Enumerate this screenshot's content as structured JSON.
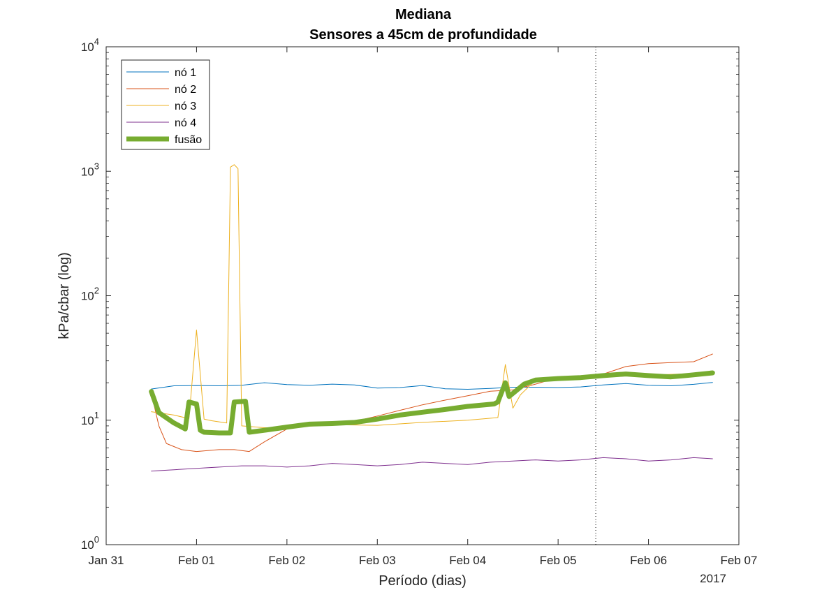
{
  "chart_data": {
    "type": "line",
    "title": [
      "Mediana",
      "Sensores a 45cm de profundidade"
    ],
    "xlabel": "Período (dias)",
    "ylabel": "kPa/cbar (log)",
    "year_label": "2017",
    "x_tick_labels": [
      "Jan 31",
      "Feb 01",
      "Feb 02",
      "Feb 03",
      "Feb 04",
      "Feb 05",
      "Feb 06",
      "Feb 07"
    ],
    "x_ticks": [
      "2017-01-31",
      "2017-02-01",
      "2017-02-02",
      "2017-02-03",
      "2017-02-04",
      "2017-02-05",
      "2017-02-06",
      "2017-02-07"
    ],
    "xlim": [
      "2017-01-31 00:00",
      "2017-02-07 00:00"
    ],
    "y_scale": "log",
    "ylim": [
      1,
      10000
    ],
    "y_ticks": [
      1,
      10,
      100,
      1000,
      10000
    ],
    "y_tick_labels": [
      {
        "base": "10",
        "exp": "0"
      },
      {
        "base": "10",
        "exp": "1"
      },
      {
        "base": "10",
        "exp": "2"
      },
      {
        "base": "10",
        "exp": "3"
      },
      {
        "base": "10",
        "exp": "4"
      }
    ],
    "vline": {
      "x": "2017-02-05 10:00",
      "style": "dotted"
    },
    "legend_position": "top-left",
    "grid": false,
    "series": [
      {
        "name": "nó 1",
        "color": "#0072BD",
        "width": 1,
        "x": [
          "2017-01-31 12:00",
          "2017-01-31 18:00",
          "2017-02-01 00:00",
          "2017-02-01 06:00",
          "2017-02-01 12:00",
          "2017-02-01 18:00",
          "2017-02-02 00:00",
          "2017-02-02 06:00",
          "2017-02-02 12:00",
          "2017-02-02 18:00",
          "2017-02-03 00:00",
          "2017-02-03 06:00",
          "2017-02-03 12:00",
          "2017-02-03 18:00",
          "2017-02-04 00:00",
          "2017-02-04 06:00",
          "2017-02-04 12:00",
          "2017-02-04 18:00",
          "2017-02-05 00:00",
          "2017-02-05 06:00",
          "2017-02-05 12:00",
          "2017-02-05 18:00",
          "2017-02-06 00:00",
          "2017-02-06 06:00",
          "2017-02-06 12:00",
          "2017-02-06 17:00"
        ],
        "values": [
          17.8,
          18.9,
          19.0,
          18.9,
          19.1,
          20.0,
          19.3,
          19.1,
          19.5,
          19.2,
          18.1,
          18.3,
          19.0,
          17.9,
          17.7,
          18.0,
          18.4,
          18.4,
          18.3,
          18.5,
          19.2,
          19.7,
          19.1,
          18.9,
          19.4,
          20.1
        ]
      },
      {
        "name": "nó 2",
        "color": "#D95319",
        "width": 1,
        "x": [
          "2017-01-31 12:00",
          "2017-01-31 14:00",
          "2017-01-31 16:00",
          "2017-01-31 20:00",
          "2017-02-01 00:00",
          "2017-02-01 06:00",
          "2017-02-01 10:00",
          "2017-02-01 14:00",
          "2017-02-01 18:00",
          "2017-02-02 00:00",
          "2017-02-02 06:00",
          "2017-02-02 12:00",
          "2017-02-02 18:00",
          "2017-02-03 00:00",
          "2017-02-03 06:00",
          "2017-02-03 12:00",
          "2017-02-03 18:00",
          "2017-02-04 00:00",
          "2017-02-04 06:00",
          "2017-02-04 12:00",
          "2017-02-04 18:00",
          "2017-02-05 00:00",
          "2017-02-05 06:00",
          "2017-02-05 12:00",
          "2017-02-05 18:00",
          "2017-02-06 00:00",
          "2017-02-06 06:00",
          "2017-02-06 12:00",
          "2017-02-06 17:00"
        ],
        "values": [
          16.5,
          9.0,
          6.5,
          5.8,
          5.6,
          5.8,
          5.8,
          5.6,
          6.7,
          8.5,
          9.4,
          9.3,
          9.8,
          10.8,
          12.0,
          13.3,
          14.5,
          15.7,
          17.1,
          17.5,
          19.5,
          22.0,
          22.5,
          23.5,
          27.0,
          28.5,
          29.0,
          29.5,
          34.0
        ]
      },
      {
        "name": "nó 3",
        "color": "#EDB120",
        "width": 1,
        "x": [
          "2017-01-31 12:00",
          "2017-01-31 18:00",
          "2017-01-31 22:00",
          "2017-02-01 00:00",
          "2017-02-01 02:00",
          "2017-02-01 04:00",
          "2017-02-01 06:00",
          "2017-02-01 08:00",
          "2017-02-01 09:00",
          "2017-02-01 10:00",
          "2017-02-01 11:00",
          "2017-02-01 12:00",
          "2017-02-01 18:00",
          "2017-02-02 00:00",
          "2017-02-02 12:00",
          "2017-02-03 00:00",
          "2017-02-03 12:00",
          "2017-02-04 00:00",
          "2017-02-04 08:00",
          "2017-02-04 10:00",
          "2017-02-04 12:00",
          "2017-02-04 14:00",
          "2017-02-04 18:00",
          "2017-02-05 00:00",
          "2017-02-05 12:00",
          "2017-02-06 00:00",
          "2017-02-06 17:00"
        ],
        "values": [
          11.7,
          11.0,
          10.3,
          53.0,
          10.2,
          9.9,
          9.7,
          9.5,
          1080,
          1130,
          1050,
          9.0,
          8.7,
          8.7,
          9.2,
          9.1,
          9.6,
          10.0,
          10.5,
          28.0,
          12.5,
          16.0,
          21.0,
          22.0,
          22.5,
          23.0,
          24.0
        ]
      },
      {
        "name": "nó 4",
        "color": "#7E2F8E",
        "width": 1,
        "x": [
          "2017-01-31 12:00",
          "2017-01-31 18:00",
          "2017-02-01 00:00",
          "2017-02-01 06:00",
          "2017-02-01 12:00",
          "2017-02-01 18:00",
          "2017-02-02 00:00",
          "2017-02-02 06:00",
          "2017-02-02 12:00",
          "2017-02-02 18:00",
          "2017-02-03 00:00",
          "2017-02-03 06:00",
          "2017-02-03 12:00",
          "2017-02-03 18:00",
          "2017-02-04 00:00",
          "2017-02-04 06:00",
          "2017-02-04 12:00",
          "2017-02-04 18:00",
          "2017-02-05 00:00",
          "2017-02-05 06:00",
          "2017-02-05 12:00",
          "2017-02-05 18:00",
          "2017-02-06 00:00",
          "2017-02-06 06:00",
          "2017-02-06 12:00",
          "2017-02-06 17:00"
        ],
        "values": [
          3.9,
          4.0,
          4.1,
          4.2,
          4.3,
          4.3,
          4.2,
          4.3,
          4.5,
          4.4,
          4.3,
          4.4,
          4.6,
          4.5,
          4.4,
          4.6,
          4.7,
          4.8,
          4.7,
          4.8,
          5.0,
          4.9,
          4.7,
          4.8,
          5.0,
          4.9
        ]
      },
      {
        "name": "fusão",
        "color": "#77AC30",
        "width": 7,
        "x": [
          "2017-01-31 12:00",
          "2017-01-31 14:00",
          "2017-01-31 18:00",
          "2017-01-31 21:00",
          "2017-01-31 22:00",
          "2017-02-01 00:00",
          "2017-02-01 01:00",
          "2017-02-01 02:00",
          "2017-02-01 06:00",
          "2017-02-01 09:00",
          "2017-02-01 10:00",
          "2017-02-01 13:00",
          "2017-02-01 14:00",
          "2017-02-01 18:00",
          "2017-02-02 00:00",
          "2017-02-02 06:00",
          "2017-02-02 12:00",
          "2017-02-02 18:00",
          "2017-02-03 00:00",
          "2017-02-03 06:00",
          "2017-02-03 12:00",
          "2017-02-03 18:00",
          "2017-02-04 00:00",
          "2017-02-04 07:00",
          "2017-02-04 08:00",
          "2017-02-04 10:00",
          "2017-02-04 11:00",
          "2017-02-04 15:00",
          "2017-02-04 18:00",
          "2017-02-05 00:00",
          "2017-02-05 06:00",
          "2017-02-05 12:00",
          "2017-02-05 18:00",
          "2017-02-06 00:00",
          "2017-02-06 06:00",
          "2017-02-06 09:00",
          "2017-02-06 11:00",
          "2017-02-06 17:00"
        ],
        "values": [
          17.0,
          11.5,
          9.5,
          8.5,
          14.0,
          13.5,
          8.3,
          8.0,
          7.9,
          7.9,
          14.0,
          14.2,
          8.0,
          8.3,
          8.8,
          9.3,
          9.4,
          9.6,
          10.2,
          11.0,
          11.6,
          12.2,
          12.9,
          13.5,
          14.0,
          20.0,
          15.5,
          19.5,
          21.0,
          21.6,
          22.0,
          22.8,
          23.5,
          22.8,
          22.3,
          22.7,
          23.0,
          24.0
        ]
      }
    ]
  }
}
